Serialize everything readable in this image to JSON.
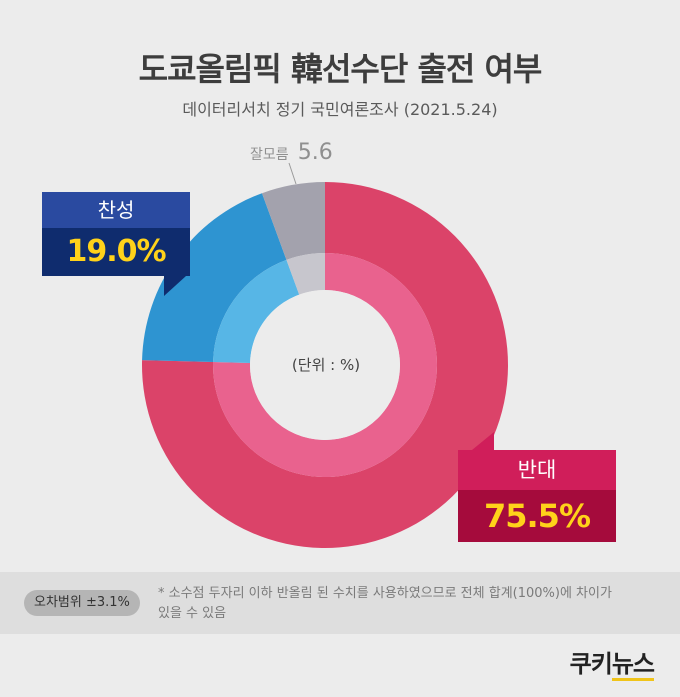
{
  "title": "도쿄올림픽 韓선수단 출전 여부",
  "subtitle": "데이터리서치 정기 국민여론조사 (2021.5.24)",
  "unit_label": "(단위 : %)",
  "callouts": {
    "agree": {
      "name": "찬성",
      "value": "19.0%"
    },
    "oppose": {
      "name": "반대",
      "value": "75.5%"
    },
    "dontknow": {
      "name": "잘모름",
      "value": "5.6"
    }
  },
  "footer": {
    "margin_of_error": "오차범위 ±3.1%",
    "footnote_line1": "* 소수점 두자리 이하 반올림 된 수치를 사용하였으므로 전체 합계(100%)에 차이가",
    "footnote_line2": "있을 수 있음"
  },
  "logo": {
    "part1": "쿠키",
    "part2": "뉴스"
  },
  "colors": {
    "oppose": "#db4369",
    "oppose_inner": "#e9628e",
    "agree": "#2e94d1",
    "agree_inner": "#57b6e6",
    "dontknow": "#a3a2ad",
    "dontknow_inner": "#c7c6cd",
    "background": "#ececec"
  },
  "chart_data": {
    "type": "pie",
    "labels": [
      "반대",
      "찬성",
      "잘모름"
    ],
    "values": [
      75.5,
      19.0,
      5.6
    ],
    "unit": "%"
  }
}
